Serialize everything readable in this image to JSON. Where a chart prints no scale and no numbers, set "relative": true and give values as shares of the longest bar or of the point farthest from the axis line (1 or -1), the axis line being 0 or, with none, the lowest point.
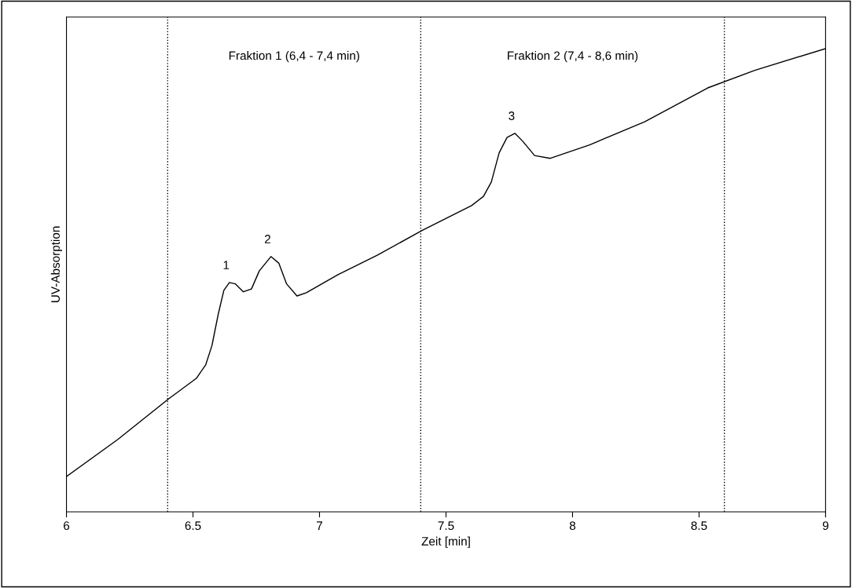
{
  "chart_data": {
    "type": "line",
    "relative": true,
    "xlabel": "Zeit [min]",
    "ylabel": "UV-Absorption",
    "x": [
      6.0,
      6.202,
      6.404,
      6.513,
      6.55,
      6.575,
      6.6,
      6.622,
      6.644,
      6.668,
      6.699,
      6.731,
      6.762,
      6.808,
      6.839,
      6.87,
      6.911,
      6.948,
      7.073,
      7.228,
      7.408,
      7.601,
      7.648,
      7.679,
      7.71,
      7.741,
      7.772,
      7.803,
      7.85,
      7.912,
      8.067,
      8.285,
      8.534,
      8.72,
      9.0
    ],
    "series": [
      {
        "color": "#000000",
        "values": [
          0.076,
          0.156,
          0.244,
          0.288,
          0.317,
          0.359,
          0.427,
          0.478,
          0.495,
          0.492,
          0.475,
          0.481,
          0.52,
          0.551,
          0.537,
          0.492,
          0.466,
          0.473,
          0.512,
          0.554,
          0.608,
          0.661,
          0.681,
          0.712,
          0.775,
          0.808,
          0.817,
          0.8,
          0.769,
          0.763,
          0.792,
          0.842,
          0.915,
          0.953,
          1.0
        ]
      }
    ],
    "xlim": [
      6,
      9
    ],
    "xticks": [
      6,
      6.5,
      7,
      7.5,
      8,
      8.5,
      9
    ],
    "ref_lines": [
      {
        "axis": "x",
        "value": 6.4,
        "line_style": "dotted",
        "color": "#000000"
      },
      {
        "axis": "x",
        "value": 7.4,
        "line_style": "dotted",
        "color": "#000000"
      },
      {
        "axis": "x",
        "value": 8.6,
        "line_style": "dotted",
        "color": "#000000"
      }
    ],
    "annotations": [
      "Fraktion 1 (6,4 - 7,4 min)",
      "Fraktion 2 (7,4 - 8,6 min)",
      {
        "text": "1",
        "x": 6.644,
        "y": 0.495
      },
      {
        "text": "2",
        "x": 6.808,
        "y": 0.551
      },
      {
        "text": "3",
        "x": 7.772,
        "y": 0.817
      }
    ],
    "grid": false,
    "legend": false,
    "marker": "none",
    "line_style": "solid"
  }
}
